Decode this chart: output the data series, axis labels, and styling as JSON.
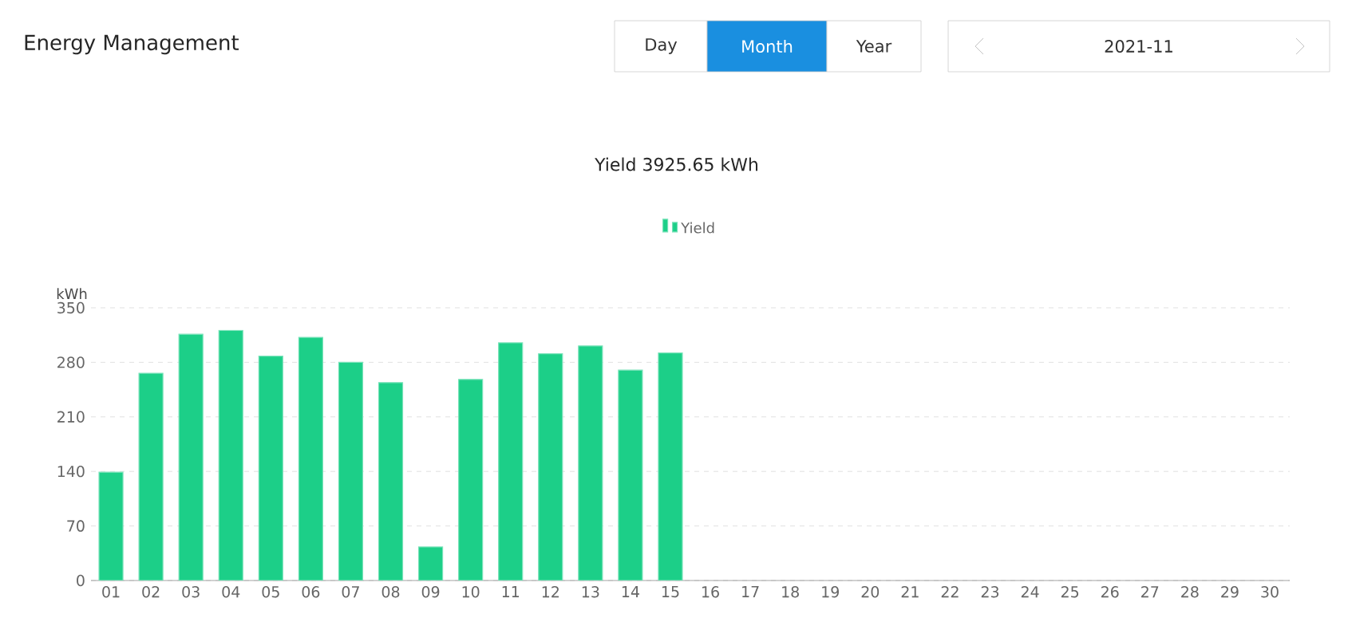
{
  "chart_data": {
    "type": "bar",
    "title": "Energy Management",
    "subtitle": "Yield 3925.65 kWh",
    "ylabel": "kWh",
    "annotations": [
      "Day",
      "Month",
      "Year",
      "2021-11"
    ],
    "categories": [
      "01",
      "02",
      "03",
      "04",
      "05",
      "06",
      "07",
      "08",
      "09",
      "10",
      "11",
      "12",
      "13",
      "14",
      "15",
      "16",
      "17",
      "18",
      "19",
      "20",
      "21",
      "22",
      "23",
      "24",
      "25",
      "26",
      "27",
      "28",
      "29",
      "30"
    ],
    "series": [
      {
        "name": "Yield",
        "color": "#1ccf88",
        "values": [
          139,
          266,
          316,
          321,
          288,
          312,
          280,
          254,
          43,
          258,
          305,
          291,
          301,
          270,
          292,
          null,
          null,
          null,
          null,
          null,
          null,
          null,
          null,
          null,
          null,
          null,
          null,
          null,
          null,
          null
        ]
      }
    ],
    "ylim": [
      0,
      350
    ],
    "yticks": [
      0,
      70,
      140,
      210,
      280,
      350
    ],
    "grid": "y",
    "legend": "top"
  }
}
